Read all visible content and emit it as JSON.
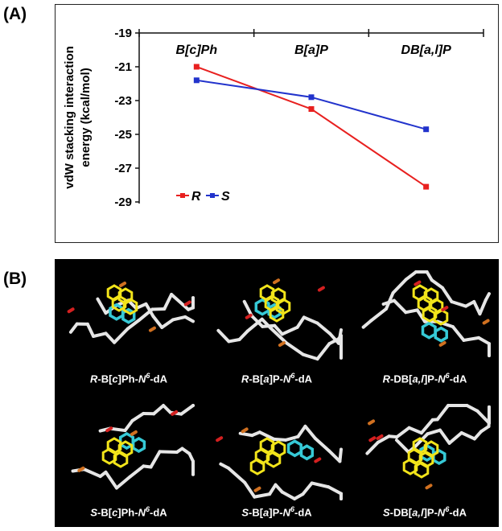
{
  "panels": {
    "a_label": "(A)",
    "b_label": "(B)"
  },
  "chart_data": {
    "type": "line",
    "categories": [
      "B[c]Ph",
      "B[a]P",
      "DB[a,l]P"
    ],
    "ylabel_lines": [
      "vdW stacking interaction",
      "energy (kcal/mol)"
    ],
    "ylim": [
      -29,
      -19
    ],
    "ytick_values": [
      -19,
      -21,
      -23,
      -25,
      -27,
      -29
    ],
    "ytick_labels": [
      "-19",
      "-21",
      "-23",
      "-25",
      "-27",
      "-29"
    ],
    "legend_position": "bottom-left",
    "series": [
      {
        "name": "R",
        "color": "#e8201f",
        "values": [
          -21.0,
          -23.5,
          -28.1
        ]
      },
      {
        "name": "S",
        "color": "#2233cc",
        "values": [
          -21.8,
          -22.8,
          -24.7
        ]
      }
    ]
  },
  "structures": [
    {
      "prefix": "R",
      "captionA": "-B[",
      "captionB": "c",
      "captionC": "]Ph-",
      "N": "N",
      "sup": "6",
      "tail": "-dA"
    },
    {
      "prefix": "R",
      "captionA": "-B[",
      "captionB": "a",
      "captionC": "]P-",
      "N": "N",
      "sup": "6",
      "tail": "-dA"
    },
    {
      "prefix": "R",
      "captionA": "-DB[",
      "captionB": "a,l",
      "captionC": "]P-",
      "N": "N",
      "sup": "6",
      "tail": "-dA"
    },
    {
      "prefix": "S",
      "captionA": "-B[",
      "captionB": "c",
      "captionC": "]Ph-",
      "N": "N",
      "sup": "6",
      "tail": "-dA"
    },
    {
      "prefix": "S",
      "captionA": "-B[",
      "captionB": "a",
      "captionC": "]P-",
      "N": "N",
      "sup": "6",
      "tail": "-dA"
    },
    {
      "prefix": "S",
      "captionA": "-DB[",
      "captionB": "a,l",
      "captionC": "]P-",
      "N": "N",
      "sup": "6",
      "tail": "-dA"
    }
  ],
  "colors": {
    "ring_yellow": "#f2e41a",
    "ring_cyan": "#36c9d6",
    "stick_white": "#e6e6e6",
    "oxygen_red": "#d42020",
    "tip_orange": "#d07020"
  }
}
